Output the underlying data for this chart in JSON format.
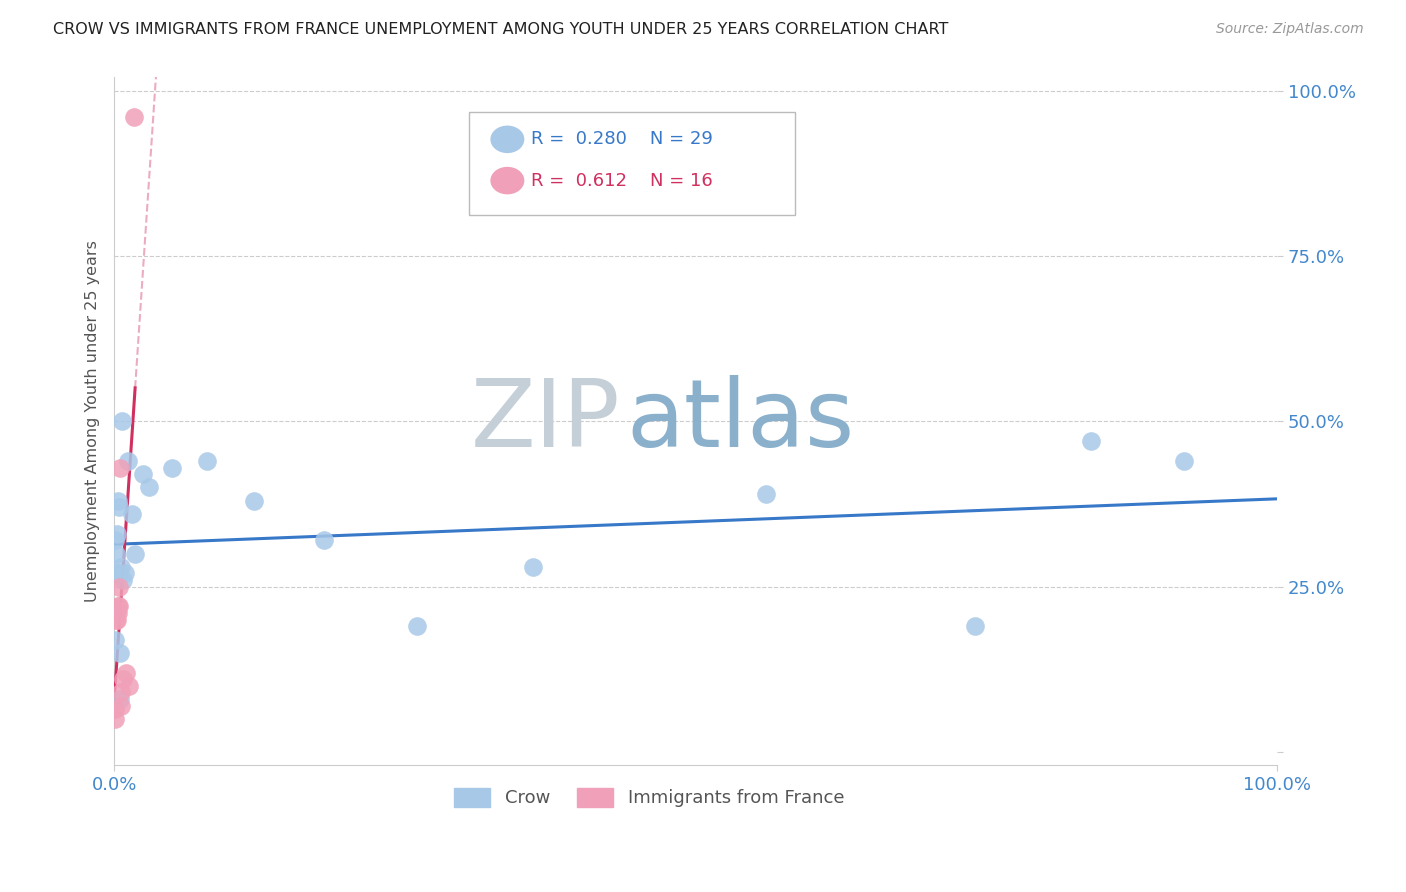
{
  "title": "CROW VS IMMIGRANTS FROM FRANCE UNEMPLOYMENT AMONG YOUTH UNDER 25 YEARS CORRELATION CHART",
  "source": "Source: ZipAtlas.com",
  "ylabel": "Unemployment Among Youth under 25 years",
  "legend_crow": "Crow",
  "legend_france": "Immigrants from France",
  "r_crow": 0.28,
  "n_crow": 29,
  "r_france": 0.612,
  "n_france": 16,
  "crow_color": "#a8c8e8",
  "france_color": "#f0a0b8",
  "crow_line_color": "#3878c8",
  "france_line_color": "#d03060",
  "watermark_zip_color": "#c8d8e8",
  "watermark_atlas_color": "#7090b0",
  "bg_color": "#ffffff",
  "grid_color": "#cccccc",
  "tick_color": "#4488cc",
  "title_color": "#222222",
  "source_color": "#999999",
  "ylabel_color": "#555555",
  "crow_x": [
    0.001,
    0.0015,
    0.002,
    0.002,
    0.003,
    0.003,
    0.004,
    0.005,
    0.005,
    0.006,
    0.007,
    0.008,
    0.009,
    0.012,
    0.015,
    0.018,
    0.025,
    0.03,
    0.05,
    0.08,
    0.12,
    0.18,
    0.26,
    0.36,
    0.56,
    0.74,
    0.84,
    0.92,
    0.001
  ],
  "crow_y": [
    0.32,
    0.3,
    0.33,
    0.27,
    0.38,
    0.27,
    0.37,
    0.08,
    0.15,
    0.28,
    0.5,
    0.26,
    0.27,
    0.44,
    0.36,
    0.3,
    0.42,
    0.4,
    0.43,
    0.44,
    0.38,
    0.32,
    0.19,
    0.28,
    0.39,
    0.19,
    0.47,
    0.44,
    0.17
  ],
  "france_x": [
    0.001,
    0.001,
    0.0015,
    0.002,
    0.002,
    0.003,
    0.003,
    0.004,
    0.004,
    0.005,
    0.006,
    0.006,
    0.008,
    0.01,
    0.013,
    0.017
  ],
  "france_y": [
    0.05,
    0.065,
    0.2,
    0.2,
    0.215,
    0.22,
    0.21,
    0.22,
    0.25,
    0.43,
    0.07,
    0.09,
    0.11,
    0.12,
    0.1,
    0.96
  ],
  "xlim": [
    0.0,
    1.0
  ],
  "ylim": [
    -0.02,
    1.02
  ],
  "yticks": [
    0.0,
    0.25,
    0.5,
    0.75,
    1.0
  ],
  "ytick_labels": [
    "",
    "25.0%",
    "50.0%",
    "75.0%",
    "100.0%"
  ],
  "xtick_labels": [
    "0.0%",
    "100.0%"
  ]
}
